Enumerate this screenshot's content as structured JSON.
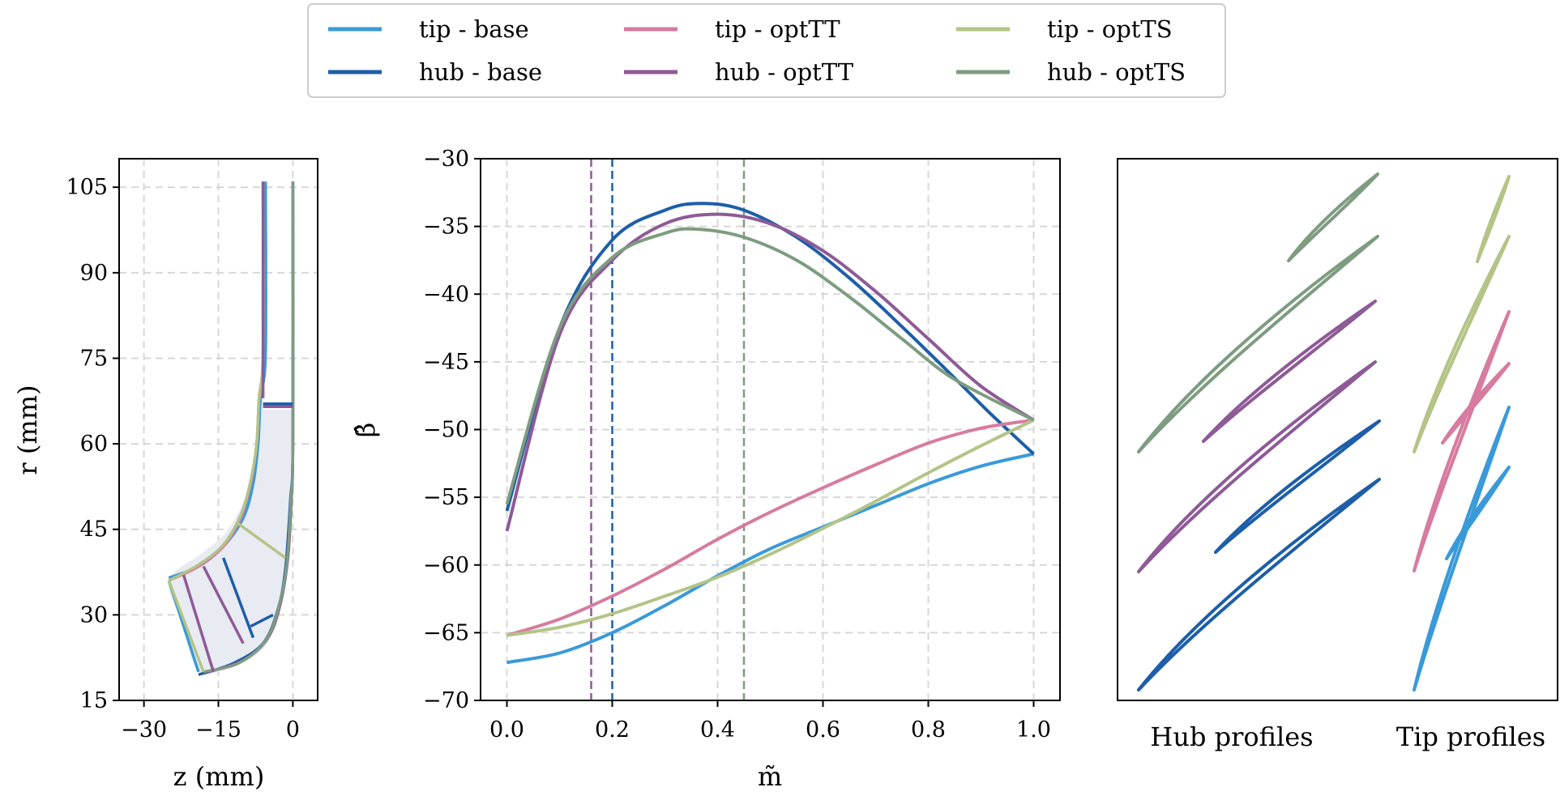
{
  "colors": {
    "tip_base": "#3a9ad9",
    "hub_base": "#1d5ea8",
    "tip_optTT": "#d77ba0",
    "hub_optTT": "#8e5a97",
    "tip_optTS": "#b3c486",
    "hub_optTS": "#7e9c80",
    "grid": "#d7d7d7",
    "fill": "#e9ebf2"
  },
  "legend": {
    "placement": "top-center",
    "entries": [
      {
        "key": "tip_base",
        "label": "tip - base"
      },
      {
        "key": "hub_base",
        "label": "hub - base"
      },
      {
        "key": "tip_optTT",
        "label": "tip - optTT"
      },
      {
        "key": "hub_optTT",
        "label": "hub - optTT"
      },
      {
        "key": "tip_optTS",
        "label": "tip - optTS"
      },
      {
        "key": "hub_optTS",
        "label": "hub - optTS"
      }
    ]
  },
  "chart_data": [
    {
      "type": "line",
      "xlabel": "z (mm)",
      "ylabel": "r (mm)",
      "xlim": [
        -35,
        5
      ],
      "ylim": [
        15,
        110
      ],
      "xticks": [
        {
          "v": -30,
          "label": "−30"
        },
        {
          "v": -15,
          "label": "−15"
        },
        {
          "v": 0,
          "label": "0"
        }
      ],
      "yticks": [
        {
          "v": 15,
          "label": "15"
        },
        {
          "v": 30,
          "label": "30"
        },
        {
          "v": 45,
          "label": "45"
        },
        {
          "v": 60,
          "label": "60"
        },
        {
          "v": 75,
          "label": "75"
        },
        {
          "v": 90,
          "label": "90"
        },
        {
          "v": 105,
          "label": "105"
        }
      ],
      "grid": true,
      "fill_region": [
        [
          -6,
          66
        ],
        [
          -6,
          68
        ],
        [
          -7,
          60
        ],
        [
          -9,
          52
        ],
        [
          -13,
          45
        ],
        [
          -18,
          41
        ],
        [
          -25,
          36
        ],
        [
          -22,
          28
        ],
        [
          -19,
          20
        ],
        [
          -12,
          21
        ],
        [
          -6,
          24
        ],
        [
          -3,
          30
        ],
        [
          -1.5,
          38
        ],
        [
          -0.5,
          50
        ],
        [
          0,
          66
        ]
      ],
      "series": [
        {
          "key": "hub_base",
          "points": [
            [
              -19,
              19.5
            ],
            [
              -12,
              21.5
            ],
            [
              -6,
              25
            ],
            [
              -3,
              31
            ],
            [
              -1.5,
              38
            ],
            [
              -0.5,
              50
            ],
            [
              0,
              60
            ],
            [
              0,
              106
            ]
          ]
        },
        {
          "key": "hub_optTT",
          "points": [
            [
              -17,
              20
            ],
            [
              -10,
              22
            ],
            [
              -5,
              26
            ],
            [
              -2.5,
              32
            ],
            [
              -1,
              40
            ],
            [
              -0.3,
              50
            ],
            [
              0,
              60
            ],
            [
              0,
              106
            ]
          ]
        },
        {
          "key": "hub_optTS",
          "points": [
            [
              -18,
              20
            ],
            [
              -11,
              21.5
            ],
            [
              -5.5,
              25.5
            ],
            [
              -2.8,
              31.5
            ],
            [
              -1.2,
              39
            ],
            [
              -0.4,
              50
            ],
            [
              0,
              60
            ],
            [
              0,
              106
            ]
          ]
        },
        {
          "key": "tip_base",
          "points": [
            [
              -25,
              36.5
            ],
            [
              -19,
              38.5
            ],
            [
              -14,
              42
            ],
            [
              -10,
              47
            ],
            [
              -8,
              53
            ],
            [
              -7,
              60
            ],
            [
              -6.5,
              68
            ],
            [
              -5.5,
              76
            ],
            [
              -5.5,
              106
            ]
          ]
        },
        {
          "key": "tip_optTT",
          "points": [
            [
              -25,
              36
            ],
            [
              -19,
              38.5
            ],
            [
              -14,
              42
            ],
            [
              -10.5,
              47
            ],
            [
              -8.5,
              53
            ],
            [
              -7.3,
              60
            ],
            [
              -6.8,
              68
            ],
            [
              -6,
              76
            ],
            [
              -6,
              106
            ]
          ]
        },
        {
          "key": "tip_optTS",
          "points": [
            [
              -25,
              36
            ],
            [
              -19,
              38.8
            ],
            [
              -14,
              42.3
            ],
            [
              -10.5,
              47.5
            ],
            [
              -8.5,
              53.5
            ],
            [
              -7.3,
              60
            ],
            [
              -6.8,
              68
            ],
            [
              -6,
              76
            ],
            [
              -6,
              106
            ]
          ]
        },
        {
          "key": "hub_optTT",
          "points": [
            [
              -6,
              66.5
            ],
            [
              0,
              66.5
            ]
          ]
        },
        {
          "key": "hub_base",
          "points": [
            [
              -6,
              67
            ],
            [
              0,
              67
            ]
          ]
        },
        {
          "key": "hub_optTT",
          "points": [
            [
              -6,
              68
            ],
            [
              -6,
              106
            ]
          ]
        },
        {
          "key": "tip_base",
          "points": [
            [
              -19,
              20
            ],
            [
              -25,
              36
            ]
          ]
        },
        {
          "key": "tip_optTS",
          "points": [
            [
              -18,
              20
            ],
            [
              -25,
              36
            ]
          ]
        },
        {
          "key": "hub_optTT",
          "points": [
            [
              -16,
              20
            ],
            [
              -22,
              37
            ]
          ]
        },
        {
          "key": "hub_base",
          "points": [
            [
              -14,
              40
            ],
            [
              -8,
              26
            ]
          ]
        },
        {
          "key": "hub_optTT",
          "points": [
            [
              -18,
              38.5
            ],
            [
              -10,
              25
            ]
          ]
        },
        {
          "key": "tip_optTS",
          "points": [
            [
              -11,
              46
            ],
            [
              -1.5,
              40
            ]
          ]
        },
        {
          "key": "hub_base",
          "points": [
            [
              -4,
              30
            ],
            [
              -8.5,
              28
            ]
          ]
        }
      ]
    },
    {
      "type": "line",
      "xlabel": "m̃",
      "ylabel": "β̂",
      "xlim": [
        -0.05,
        1.05
      ],
      "ylim": [
        -70,
        -30
      ],
      "xticks": [
        {
          "v": 0,
          "label": "0.0"
        },
        {
          "v": 0.2,
          "label": "0.2"
        },
        {
          "v": 0.4,
          "label": "0.4"
        },
        {
          "v": 0.6,
          "label": "0.6"
        },
        {
          "v": 0.8,
          "label": "0.8"
        },
        {
          "v": 1.0,
          "label": "1.0"
        }
      ],
      "yticks": [
        {
          "v": -30,
          "label": "−30"
        },
        {
          "v": -35,
          "label": "−35"
        },
        {
          "v": -40,
          "label": "−40"
        },
        {
          "v": -45,
          "label": "−45"
        },
        {
          "v": -50,
          "label": "−50"
        },
        {
          "v": -55,
          "label": "−55"
        },
        {
          "v": -60,
          "label": "−60"
        },
        {
          "v": -65,
          "label": "−65"
        },
        {
          "v": -70,
          "label": "−70"
        }
      ],
      "grid": true,
      "vlines": [
        {
          "key": "hub_optTT",
          "x": 0.16
        },
        {
          "key": "hub_base",
          "x": 0.2
        },
        {
          "key": "hub_optTS",
          "x": 0.45
        }
      ],
      "series": [
        {
          "key": "tip_base",
          "x": [
            0,
            0.1,
            0.2,
            0.3,
            0.4,
            0.5,
            0.6,
            0.7,
            0.8,
            0.9,
            1.0
          ],
          "y": [
            -67.2,
            -66.5,
            -65.0,
            -63.0,
            -60.8,
            -58.8,
            -57.2,
            -55.6,
            -54.0,
            -52.7,
            -51.8
          ]
        },
        {
          "key": "hub_base",
          "x": [
            0,
            0.1,
            0.2,
            0.3,
            0.37,
            0.45,
            0.55,
            0.65,
            0.75,
            0.85,
            0.92,
            1.0
          ],
          "y": [
            -56.0,
            -42.5,
            -36.0,
            -33.8,
            -33.3,
            -33.8,
            -35.8,
            -38.8,
            -42.4,
            -46.2,
            -48.9,
            -51.8
          ]
        },
        {
          "key": "tip_optTT",
          "x": [
            0,
            0.1,
            0.2,
            0.3,
            0.4,
            0.5,
            0.6,
            0.7,
            0.8,
            0.9,
            1.0
          ],
          "y": [
            -65.2,
            -64.0,
            -62.3,
            -60.3,
            -58.1,
            -56.1,
            -54.3,
            -52.6,
            -51.0,
            -49.9,
            -49.3
          ]
        },
        {
          "key": "hub_optTT",
          "x": [
            0,
            0.1,
            0.2,
            0.3,
            0.4,
            0.5,
            0.6,
            0.7,
            0.8,
            0.9,
            1.0
          ],
          "y": [
            -57.5,
            -43.0,
            -37.5,
            -34.8,
            -34.1,
            -34.8,
            -36.8,
            -39.8,
            -43.3,
            -46.8,
            -49.3
          ]
        },
        {
          "key": "tip_optTS",
          "x": [
            0,
            0.1,
            0.2,
            0.3,
            0.4,
            0.5,
            0.6,
            0.7,
            0.8,
            0.9,
            1.0
          ],
          "y": [
            -65.2,
            -64.6,
            -63.6,
            -62.3,
            -60.9,
            -59.2,
            -57.3,
            -55.3,
            -53.2,
            -51.2,
            -49.3
          ]
        },
        {
          "key": "hub_optTS",
          "x": [
            0,
            0.1,
            0.2,
            0.3,
            0.36,
            0.45,
            0.55,
            0.65,
            0.75,
            0.85,
            1.0
          ],
          "y": [
            -55.5,
            -42.5,
            -37.3,
            -35.5,
            -35.2,
            -35.8,
            -37.5,
            -40.2,
            -43.3,
            -46.3,
            -49.3
          ]
        }
      ]
    },
    {
      "type": "line",
      "categories": [
        "Hub profiles",
        "Tip profiles"
      ]
    }
  ]
}
